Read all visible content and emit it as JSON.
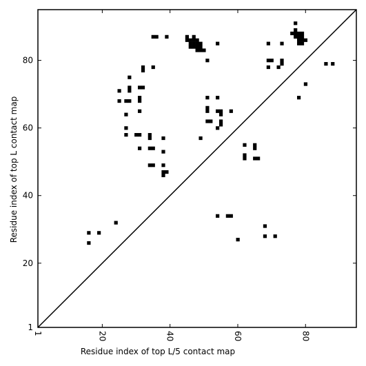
{
  "chart_data": {
    "type": "scatter",
    "title": "",
    "xlabel": "Residue index of top L/5 contact map",
    "ylabel": "Residue index of top L contact map",
    "xlim": [
      1,
      95
    ],
    "ylim": [
      1,
      95
    ],
    "x_ticks": [
      1,
      20,
      40,
      60,
      80
    ],
    "y_ticks": [
      1,
      20,
      40,
      60,
      80
    ],
    "x_tick_rotation": -90,
    "grid": false,
    "legend": "none",
    "marker": "square",
    "colors": {
      "points": "#000000",
      "diagonal": "#000000",
      "frame": "#000000",
      "background": "#ffffff"
    },
    "diagonal_line": {
      "from": [
        1,
        1
      ],
      "to": [
        95,
        95
      ]
    },
    "series": [
      {
        "points": [
          [
            16,
            26
          ],
          [
            16,
            29
          ],
          [
            19,
            29
          ],
          [
            24,
            32
          ],
          [
            54,
            34
          ],
          [
            57,
            34
          ],
          [
            58,
            34
          ],
          [
            60,
            27
          ],
          [
            68,
            28
          ],
          [
            68,
            31
          ],
          [
            71,
            28
          ],
          [
            62,
            51
          ],
          [
            62,
            52
          ],
          [
            62,
            55
          ],
          [
            65,
            51
          ],
          [
            66,
            51
          ],
          [
            65,
            54
          ],
          [
            65,
            55
          ],
          [
            25,
            68
          ],
          [
            25,
            71
          ],
          [
            27,
            68
          ],
          [
            28,
            68
          ],
          [
            28,
            71
          ],
          [
            28,
            72
          ],
          [
            28,
            75
          ],
          [
            27,
            64
          ],
          [
            27,
            60
          ],
          [
            27,
            58
          ],
          [
            30,
            58
          ],
          [
            31,
            58
          ],
          [
            31,
            65
          ],
          [
            31,
            68
          ],
          [
            31,
            69
          ],
          [
            31,
            72
          ],
          [
            32,
            72
          ],
          [
            31,
            54
          ],
          [
            32,
            77
          ],
          [
            32,
            78
          ],
          [
            35,
            78
          ],
          [
            35,
            87
          ],
          [
            36,
            87
          ],
          [
            39,
            87
          ],
          [
            34,
            49
          ],
          [
            35,
            49
          ],
          [
            34,
            54
          ],
          [
            35,
            54
          ],
          [
            34,
            57
          ],
          [
            34,
            58
          ],
          [
            38,
            46
          ],
          [
            38,
            47
          ],
          [
            39,
            47
          ],
          [
            38,
            49
          ],
          [
            38,
            53
          ],
          [
            38,
            57
          ],
          [
            45,
            86
          ],
          [
            45,
            87
          ],
          [
            46,
            84
          ],
          [
            46,
            85
          ],
          [
            46,
            86
          ],
          [
            47,
            84
          ],
          [
            47,
            85
          ],
          [
            47,
            86
          ],
          [
            47,
            87
          ],
          [
            48,
            83
          ],
          [
            48,
            84
          ],
          [
            48,
            85
          ],
          [
            48,
            86
          ],
          [
            49,
            83
          ],
          [
            49,
            84
          ],
          [
            49,
            85
          ],
          [
            50,
            83
          ],
          [
            51,
            80
          ],
          [
            54,
            85
          ],
          [
            49,
            57
          ],
          [
            51,
            62
          ],
          [
            52,
            62
          ],
          [
            51,
            65
          ],
          [
            51,
            66
          ],
          [
            51,
            69
          ],
          [
            54,
            60
          ],
          [
            54,
            65
          ],
          [
            54,
            69
          ],
          [
            55,
            61
          ],
          [
            55,
            62
          ],
          [
            55,
            64
          ],
          [
            55,
            65
          ],
          [
            58,
            65
          ],
          [
            69,
            78
          ],
          [
            69,
            80
          ],
          [
            69,
            85
          ],
          [
            70,
            80
          ],
          [
            72,
            78
          ],
          [
            73,
            79
          ],
          [
            73,
            80
          ],
          [
            73,
            85
          ],
          [
            76,
            88
          ],
          [
            77,
            87
          ],
          [
            77,
            88
          ],
          [
            77,
            89
          ],
          [
            77,
            91
          ],
          [
            78,
            85
          ],
          [
            78,
            86
          ],
          [
            78,
            87
          ],
          [
            78,
            88
          ],
          [
            79,
            85
          ],
          [
            79,
            86
          ],
          [
            79,
            87
          ],
          [
            79,
            88
          ],
          [
            80,
            86
          ],
          [
            78,
            69
          ],
          [
            80,
            73
          ],
          [
            86,
            79
          ],
          [
            88,
            79
          ]
        ]
      }
    ]
  }
}
